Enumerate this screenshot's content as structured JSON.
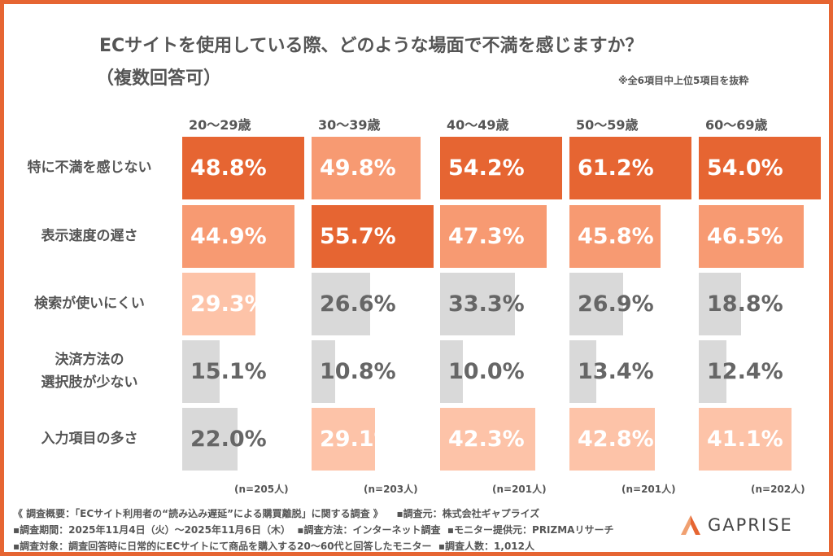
{
  "title": "ECサイトを使用している際、どのような場面で不満を感じますか？",
  "subtitle": "（複数回答可）",
  "note": "※全6項目中上位5項目を抜粋",
  "colors": {
    "rank1": "#E66532",
    "rank2": "#F79A72",
    "rank3": "#FDC3A8",
    "other": "#D9D9D9",
    "frame": "#E66532"
  },
  "chart_data": {
    "type": "bar",
    "title": "ECサイトを使用している際、どのような場面で不満を感じますか？",
    "categories": [
      "特に不満を感じない",
      "表示速度の遅さ",
      "検索が使いにくい",
      "決済方法の\n選択肢が少ない",
      "入力項目の多さ"
    ],
    "unit": "%",
    "series": [
      {
        "name": "20〜29歳",
        "n": "(n=205人)",
        "values": [
          48.8,
          44.9,
          29.3,
          15.1,
          22.0
        ]
      },
      {
        "name": "30〜39歳",
        "n": "(n=203人)",
        "values": [
          49.8,
          55.7,
          26.6,
          10.8,
          29.1
        ]
      },
      {
        "name": "40〜49歳",
        "n": "(n=201人)",
        "values": [
          54.2,
          47.3,
          33.3,
          10.0,
          42.3
        ]
      },
      {
        "name": "50〜59歳",
        "n": "(n=201人)",
        "values": [
          61.2,
          45.8,
          26.9,
          13.4,
          42.8
        ]
      },
      {
        "name": "60〜69歳",
        "n": "(n=202人)",
        "values": [
          54.0,
          46.5,
          18.8,
          12.4,
          41.1
        ]
      }
    ]
  },
  "footer": {
    "line1a": "《 調査概要：「ECサイト利用者の“読み込み遅延”による購買離脱」に関する調査 》",
    "line1b": "▪調査元：株式会社ギャプライズ",
    "line2a": "▪調査期間：2025年11月4日（火）〜2025年11月6日（木）",
    "line2b": "▪調査方法：インターネット調査",
    "line2c": "▪モニター提供元：PRIZMAリサーチ",
    "line3a": "▪調査対象：調査回答時に日常的にECサイトにて商品を購入する20〜60代と回答したモニター",
    "line3b": "▪調査人数：1,012人"
  },
  "logo": {
    "text": "GAPRISE"
  }
}
